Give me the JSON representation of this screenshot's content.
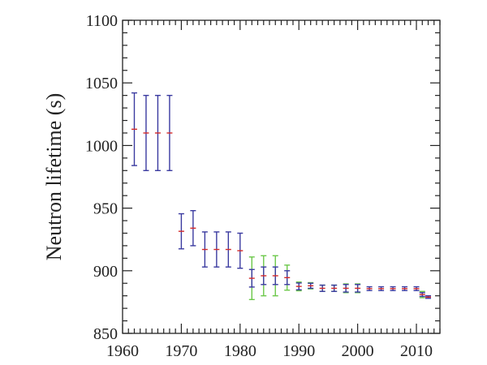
{
  "chart_data": {
    "type": "scatter",
    "title": "",
    "xlabel": "",
    "ylabel": "Neutron lifetime (s)",
    "xlim": [
      1960,
      2014
    ],
    "ylim": [
      850,
      1100
    ],
    "xticks": [
      "1960",
      "1970",
      "1980",
      "1990",
      "2000",
      "2010"
    ],
    "yticks": [
      "850",
      "900",
      "950",
      "1000",
      "1050",
      "1100"
    ],
    "grid": false,
    "colors": {
      "value": "#d42a2a",
      "inner_error": "#3a3aa0",
      "outer_error": "#6cc84a",
      "axis": "#222222"
    },
    "points": [
      {
        "year": 1962,
        "value": 1013,
        "err": 29
      },
      {
        "year": 1964,
        "value": 1010,
        "err": 30
      },
      {
        "year": 1966,
        "value": 1010,
        "err": 30
      },
      {
        "year": 1968,
        "value": 1010,
        "err": 30
      },
      {
        "year": 1970,
        "value": 931.5,
        "err": 14
      },
      {
        "year": 1972,
        "value": 934,
        "err": 14
      },
      {
        "year": 1974,
        "value": 917,
        "err": 14
      },
      {
        "year": 1976,
        "value": 917,
        "err": 14
      },
      {
        "year": 1978,
        "value": 917,
        "err": 14
      },
      {
        "year": 1980,
        "value": 916,
        "err": 14
      },
      {
        "year": 1982,
        "value": 894,
        "err": 7,
        "err_outer": 17
      },
      {
        "year": 1984,
        "value": 896,
        "err": 7,
        "err_outer": 16
      },
      {
        "year": 1986,
        "value": 896,
        "err": 7,
        "err_outer": 16
      },
      {
        "year": 1988,
        "value": 894.5,
        "err": 5.5,
        "err_outer": 10
      },
      {
        "year": 1990,
        "value": 887.5,
        "err": 2.7,
        "err_outer": 3.5
      },
      {
        "year": 1992,
        "value": 888,
        "err": 2,
        "err_outer": 2.5
      },
      {
        "year": 1994,
        "value": 886,
        "err": 2.5,
        "err_outer": 2.5
      },
      {
        "year": 1996,
        "value": 886,
        "err": 2.5,
        "err_outer": 2.5
      },
      {
        "year": 1998,
        "value": 886,
        "err": 3,
        "err_outer": 3.5
      },
      {
        "year": 2000,
        "value": 886,
        "err": 3,
        "err_outer": 3.5
      },
      {
        "year": 2002,
        "value": 885.7,
        "err": 1.5
      },
      {
        "year": 2004,
        "value": 885.7,
        "err": 1.5
      },
      {
        "year": 2006,
        "value": 885.7,
        "err": 1.5
      },
      {
        "year": 2008,
        "value": 885.7,
        "err": 1.5
      },
      {
        "year": 2010,
        "value": 885.7,
        "err": 1.5
      },
      {
        "year": 2011,
        "value": 881,
        "err": 1.5,
        "err_outer": 2.5
      },
      {
        "year": 2012,
        "value": 879,
        "err": 1
      }
    ]
  }
}
